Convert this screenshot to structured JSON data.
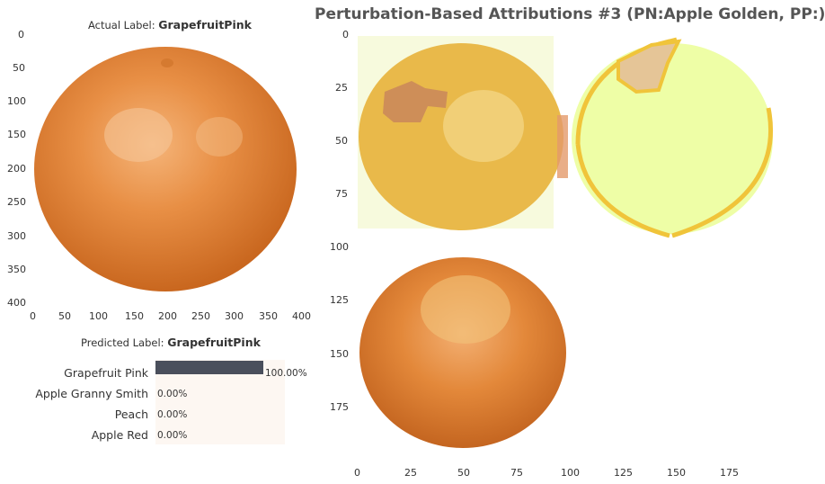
{
  "main_title": "Perturbation-Based Attributions #3 (PN:Apple Golden, PP:)",
  "actual_panel": {
    "prefix": "Actual Label: ",
    "label": "GrapefruitPink",
    "y_ticks": [
      "0",
      "50",
      "100",
      "150",
      "200",
      "250",
      "300",
      "350",
      "400"
    ],
    "x_ticks": [
      "0",
      "50",
      "100",
      "150",
      "200",
      "250",
      "300",
      "350",
      "400"
    ]
  },
  "predicted_panel": {
    "prefix": "Predicted Label: ",
    "label": "GrapefruitPink"
  },
  "perturbation_panel": {
    "y_ticks": [
      "0",
      "25",
      "50",
      "75",
      "100",
      "125",
      "150",
      "175"
    ],
    "x_ticks": [
      "0",
      "25",
      "50",
      "75",
      "100",
      "125",
      "150",
      "175"
    ]
  },
  "chart_data": {
    "type": "bar",
    "orientation": "horizontal",
    "categories": [
      "Grapefruit Pink",
      "Apple Granny Smith",
      "Peach",
      "Apple Red"
    ],
    "values": [
      100.0,
      0.0,
      0.0,
      0.0
    ],
    "value_labels": [
      "100.00%",
      "0.00%",
      "0.00%",
      "0.00%"
    ],
    "xlim": [
      0,
      100
    ],
    "bar_color": "#4a4f5c"
  },
  "colors": {
    "orange_fruit": "#e3883a",
    "yellow_fruit": "#e8b83c",
    "pale_green": "#eafea0",
    "outline_yellow": "#f0c43a"
  }
}
